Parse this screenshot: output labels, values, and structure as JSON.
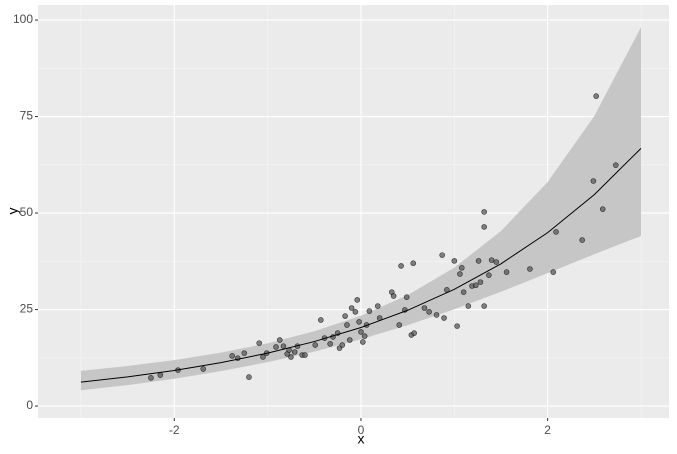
{
  "chart_data": {
    "type": "scatter",
    "xlabel": "x",
    "ylabel": "y",
    "xlim": [
      -3.46,
      3.3
    ],
    "ylim": [
      -3.1,
      103.9
    ],
    "xticks": [
      -2,
      0,
      2
    ],
    "yticks": [
      0,
      25,
      50,
      75,
      100
    ],
    "grid": true,
    "color": "#595959",
    "x": [
      -2.25,
      -2.15,
      -1.96,
      -1.69,
      -1.38,
      -1.32,
      -1.25,
      -1.2,
      -1.09,
      -1.05,
      -1.01,
      -0.91,
      -0.87,
      -0.83,
      -0.79,
      -0.77,
      -0.75,
      -0.71,
      -0.68,
      -0.63,
      -0.6,
      -0.49,
      -0.43,
      -0.39,
      -0.33,
      -0.3,
      -0.25,
      -0.23,
      -0.2,
      -0.17,
      -0.15,
      -0.12,
      -0.1,
      -0.06,
      -0.04,
      -0.02,
      0,
      0.02,
      0.04,
      0.06,
      0.09,
      0.18,
      0.2,
      0.33,
      0.35,
      0.41,
      0.43,
      0.47,
      0.49,
      0.54,
      0.57,
      0.56,
      0.68,
      0.73,
      0.81,
      0.87,
      0.89,
      0.92,
      1.0,
      1.03,
      1.06,
      1.08,
      1.1,
      1.15,
      1.19,
      1.23,
      1.26,
      1.28,
      1.32,
      1.32,
      1.32,
      1.37,
      1.4,
      1.45,
      1.56,
      1.81,
      2.06,
      2.09,
      2.37,
      2.49,
      2.52,
      2.59,
      2.73
    ],
    "values": [
      7.3,
      8.0,
      9.3,
      9.6,
      13.0,
      12.4,
      13.7,
      7.5,
      16.3,
      12.7,
      13.7,
      15.3,
      17.1,
      15.5,
      13.5,
      14.5,
      12.7,
      14.0,
      15.5,
      13.2,
      13.2,
      15.8,
      22.3,
      17.6,
      16.1,
      17.9,
      18.9,
      15.0,
      15.8,
      23.3,
      21.0,
      17.1,
      25.4,
      24.4,
      27.5,
      21.8,
      19.2,
      16.6,
      18.1,
      21.0,
      24.6,
      25.9,
      22.8,
      29.5,
      28.5,
      21.0,
      36.3,
      24.9,
      28.2,
      18.4,
      18.9,
      37.0,
      25.4,
      24.4,
      23.6,
      39.1,
      22.8,
      30.1,
      37.6,
      20.7,
      34.2,
      35.8,
      29.5,
      25.9,
      31.1,
      31.3,
      37.6,
      32.1,
      50.3,
      46.4,
      25.9,
      33.9,
      37.8,
      37.3,
      34.7,
      35.5,
      34.7,
      45.1,
      43.0,
      58.3,
      80.3,
      51.0,
      62.4
    ],
    "fit": {
      "color": "#000000",
      "band_color": "#c6c6c6",
      "x": [
        -3,
        -2.5,
        -2,
        -1.5,
        -1,
        -0.5,
        0,
        0.5,
        1,
        1.5,
        2,
        2.5,
        3
      ],
      "values": [
        6.2,
        7.56,
        9.22,
        11.24,
        13.7,
        16.7,
        20.35,
        24.81,
        30.24,
        36.86,
        44.93,
        54.77,
        66.76
      ],
      "lower": [
        4.09,
        5.43,
        7.06,
        9.03,
        11.36,
        14.11,
        17.3,
        20.96,
        25.07,
        29.6,
        34.42,
        39.32,
        44.06
      ],
      "upper": [
        9.11,
        10.37,
        11.91,
        13.83,
        16.25,
        19.36,
        23.4,
        28.75,
        35.86,
        45.34,
        58.05,
        75.14,
        98.14
      ]
    }
  }
}
